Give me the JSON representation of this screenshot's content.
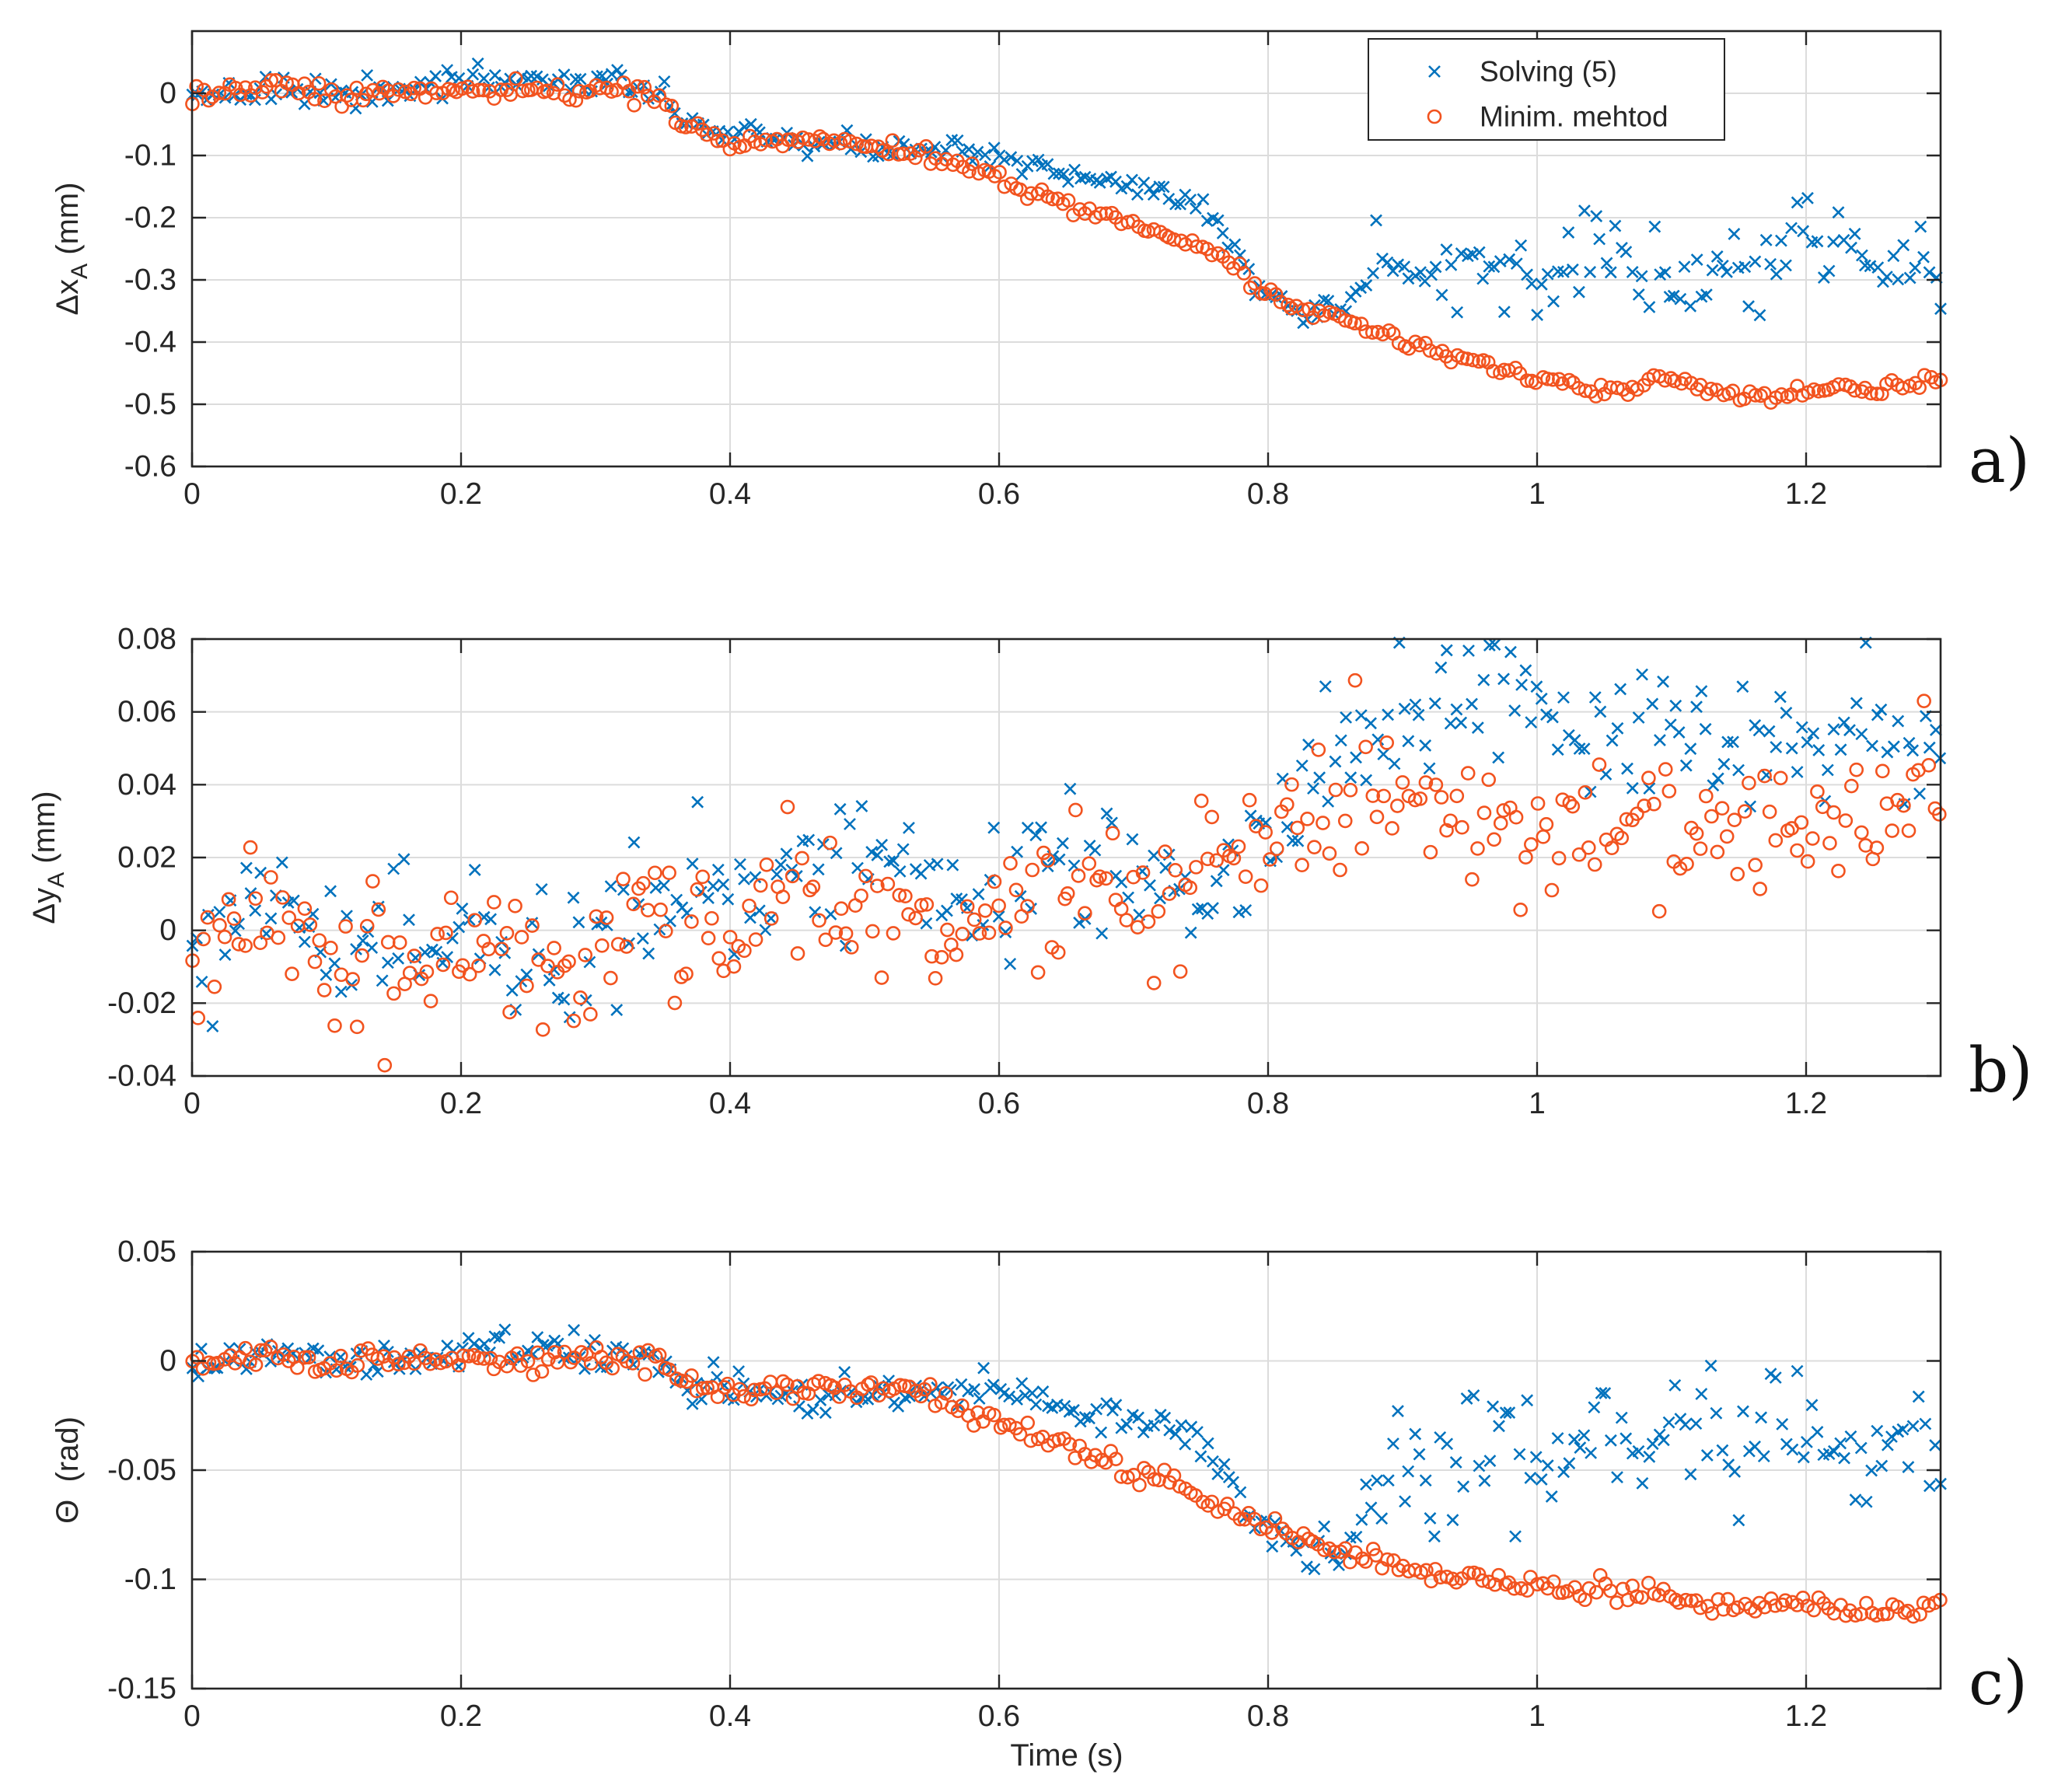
{
  "figure": {
    "x_label": "Time (s)",
    "legend": {
      "entries": [
        "Solving (5)",
        "Minim. mehtod"
      ],
      "placement": "top-right of panel a"
    },
    "colors": {
      "solving": "#0072BD",
      "minim": "#F2531F",
      "axes": "#262626",
      "grid": "#DCDCDC"
    }
  },
  "chart_data": [
    {
      "type": "scatter",
      "panel_label": "a)",
      "ylabel": {
        "main": "Δx",
        "sub": "A",
        "unit": " (mm)"
      },
      "xlim": [
        0,
        1.3
      ],
      "ylim": [
        -0.6,
        0.1
      ],
      "xticks": [
        0,
        0.2,
        0.4,
        0.6,
        0.8,
        1,
        1.2
      ],
      "xtick_labels": [
        "0",
        "0.2",
        "0.4",
        "0.6",
        "0.8",
        "1",
        "1.2"
      ],
      "yticks": [
        -0.6,
        -0.5,
        -0.4,
        -0.3,
        -0.2,
        -0.1,
        0
      ],
      "ytick_labels": [
        "-0.6",
        "-0.5",
        "-0.4",
        "-0.3",
        "-0.2",
        "-0.1",
        "0"
      ],
      "grid": true,
      "series": [
        {
          "name": "Solving (5)",
          "marker": "x",
          "x": [
            0,
            0.05,
            0.1,
            0.15,
            0.2,
            0.25,
            0.3,
            0.35,
            0.36,
            0.4,
            0.45,
            0.5,
            0.55,
            0.6,
            0.65,
            0.7,
            0.75,
            0.78,
            0.8,
            0.85,
            0.88,
            0.9,
            0.95,
            1,
            1.05,
            1.1,
            1.15,
            1.2,
            1.25,
            1.3
          ],
          "y": [
            0,
            0.01,
            0.01,
            0,
            0.02,
            0.02,
            0.02,
            0.01,
            -0.04,
            -0.07,
            -0.08,
            -0.085,
            -0.09,
            -0.1,
            -0.13,
            -0.15,
            -0.18,
            -0.26,
            -0.34,
            -0.36,
            -0.3,
            -0.285,
            -0.28,
            -0.3,
            -0.26,
            -0.3,
            -0.3,
            -0.22,
            -0.27,
            -0.28
          ]
        },
        {
          "name": "Minim. mehtod",
          "marker": "o",
          "x": [
            0,
            0.05,
            0.1,
            0.15,
            0.2,
            0.25,
            0.3,
            0.35,
            0.36,
            0.4,
            0.45,
            0.5,
            0.55,
            0.6,
            0.65,
            0.7,
            0.75,
            0.78,
            0.8,
            0.85,
            0.9,
            0.95,
            1,
            1.05,
            1.1,
            1.15,
            1.2,
            1.25,
            1.3
          ],
          "y": [
            0,
            0.005,
            0,
            0,
            0.005,
            0,
            0.005,
            0,
            -0.04,
            -0.08,
            -0.075,
            -0.085,
            -0.1,
            -0.14,
            -0.18,
            -0.21,
            -0.25,
            -0.28,
            -0.33,
            -0.36,
            -0.4,
            -0.43,
            -0.46,
            -0.48,
            -0.46,
            -0.49,
            -0.48,
            -0.475,
            -0.46
          ]
        }
      ]
    },
    {
      "type": "scatter",
      "panel_label": "b)",
      "ylabel": {
        "main": "Δy",
        "sub": "A",
        "unit": " (mm)"
      },
      "xlim": [
        0,
        1.3
      ],
      "ylim": [
        -0.04,
        0.08
      ],
      "xticks": [
        0,
        0.2,
        0.4,
        0.6,
        0.8,
        1,
        1.2
      ],
      "xtick_labels": [
        "0",
        "0.2",
        "0.4",
        "0.6",
        "0.8",
        "1",
        "1.2"
      ],
      "yticks": [
        -0.04,
        -0.02,
        0,
        0.02,
        0.04,
        0.06,
        0.08
      ],
      "ytick_labels": [
        "-0.04",
        "-0.02",
        "0",
        "0.02",
        "0.04",
        "0.06",
        "0.08"
      ],
      "grid": true,
      "series": [
        {
          "name": "Solving (5)",
          "marker": "x",
          "x": [
            0,
            0.05,
            0.1,
            0.15,
            0.2,
            0.25,
            0.3,
            0.35,
            0.4,
            0.45,
            0.5,
            0.55,
            0.6,
            0.65,
            0.7,
            0.75,
            0.8,
            0.85,
            0.9,
            0.95,
            1,
            1.05,
            1.1,
            1.15,
            1.2,
            1.25,
            1.3
          ],
          "y": [
            -0.01,
            0.01,
            0,
            -0.005,
            0.005,
            -0.01,
            -0.005,
            0.01,
            0.01,
            0.015,
            0.02,
            0.01,
            0.01,
            0.02,
            0.015,
            0.01,
            0.025,
            0.045,
            0.06,
            0.065,
            0.055,
            0.05,
            0.055,
            0.05,
            0.05,
            0.055,
            0.052
          ]
        },
        {
          "name": "Minim. mehtod",
          "marker": "o",
          "x": [
            0,
            0.05,
            0.1,
            0.15,
            0.2,
            0.25,
            0.3,
            0.35,
            0.4,
            0.45,
            0.5,
            0.55,
            0.6,
            0.65,
            0.7,
            0.75,
            0.8,
            0.85,
            0.9,
            0.95,
            1,
            1.05,
            1.1,
            1.15,
            1.2,
            1.25,
            1.3
          ],
          "y": [
            -0.01,
            0.01,
            -0.005,
            -0.01,
            0,
            -0.01,
            -0.005,
            0.005,
            0.005,
            0.01,
            0.01,
            0,
            0.005,
            0.015,
            0.01,
            0.015,
            0.03,
            0.035,
            0.04,
            0.035,
            0.03,
            0.025,
            0.025,
            0.03,
            0.03,
            0.03,
            0.03
          ]
        }
      ]
    },
    {
      "type": "scatter",
      "panel_label": "c)",
      "ylabel": {
        "main": "Θ",
        "sub": "",
        "unit": "  (rad)"
      },
      "xlim": [
        0,
        1.3
      ],
      "ylim": [
        -0.15,
        0.05
      ],
      "xticks": [
        0,
        0.2,
        0.4,
        0.6,
        0.8,
        1,
        1.2
      ],
      "xtick_labels": [
        "0",
        "0.2",
        "0.4",
        "0.6",
        "0.8",
        "1",
        "1.2"
      ],
      "yticks": [
        -0.15,
        -0.1,
        -0.05,
        0,
        0.05
      ],
      "ytick_labels": [
        "-0.15",
        "-0.1",
        "-0.05",
        "0",
        "0.05"
      ],
      "grid": true,
      "series": [
        {
          "name": "Solving (5)",
          "marker": "x",
          "x": [
            0,
            0.05,
            0.1,
            0.15,
            0.2,
            0.25,
            0.3,
            0.35,
            0.36,
            0.4,
            0.45,
            0.5,
            0.55,
            0.6,
            0.65,
            0.7,
            0.75,
            0.78,
            0.8,
            0.85,
            0.88,
            0.9,
            0.95,
            1,
            1.05,
            1.1,
            1.15,
            1.2,
            1.25,
            1.3
          ],
          "y": [
            0,
            0.005,
            0,
            0,
            0.005,
            0.005,
            0.005,
            0.002,
            -0.008,
            -0.013,
            -0.015,
            -0.015,
            -0.015,
            -0.012,
            -0.02,
            -0.025,
            -0.035,
            -0.06,
            -0.08,
            -0.09,
            -0.06,
            -0.05,
            -0.045,
            -0.04,
            -0.035,
            -0.045,
            -0.04,
            -0.03,
            -0.04,
            -0.045
          ]
        },
        {
          "name": "Minim. mehtod",
          "marker": "o",
          "x": [
            0,
            0.05,
            0.1,
            0.15,
            0.2,
            0.25,
            0.3,
            0.35,
            0.36,
            0.4,
            0.45,
            0.5,
            0.55,
            0.6,
            0.65,
            0.7,
            0.75,
            0.8,
            0.85,
            0.9,
            0.95,
            1,
            1.05,
            1.1,
            1.15,
            1.2,
            1.25,
            1.3
          ],
          "y": [
            0,
            0.002,
            0,
            0,
            0.002,
            0,
            0.003,
            0,
            -0.008,
            -0.012,
            -0.013,
            -0.013,
            -0.016,
            -0.028,
            -0.04,
            -0.05,
            -0.062,
            -0.075,
            -0.087,
            -0.095,
            -0.1,
            -0.103,
            -0.106,
            -0.108,
            -0.113,
            -0.112,
            -0.113,
            -0.112
          ]
        }
      ]
    }
  ]
}
